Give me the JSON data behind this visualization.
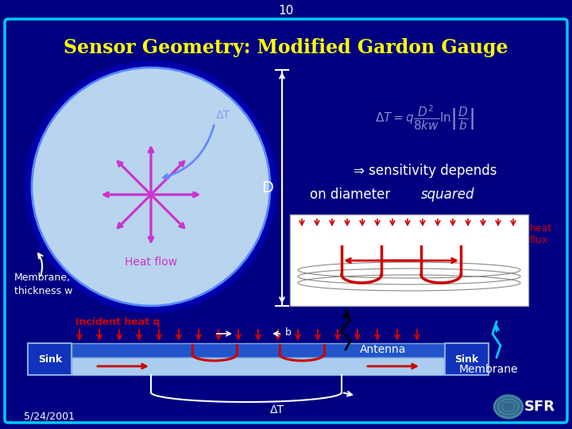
{
  "slide_number": "10",
  "title": "Sensor Geometry: Modified Gardon Gauge",
  "background_color": "#000080",
  "border_color": "#00ccff",
  "title_color": "#ffff00",
  "slide_num_color": "#ffffff",
  "date_text": "5/24/2001",
  "sensitivity_text_line1": "⇒ sensitivity depends",
  "sensitivity_text_line2": "on diameter ",
  "sensitivity_italic": "squared",
  "membrane_label": "Membrane,",
  "thickness_label": "thickness w",
  "incident_heat_label": "Incident heat q",
  "heat_flow_label": "Heat flow",
  "b_label": "b",
  "antenna_label": "Antenna",
  "membrane_bottom_label": "Membrane",
  "sink_label": "Sink",
  "delta_t_label": "ΔT",
  "delta_t_top_label": "ΔT",
  "D_label": "D",
  "heat_flux_label": "heat\nflux",
  "arrow_color": "#cc33cc",
  "red_color": "#cc0000",
  "white_color": "#ffffff",
  "light_blue_circle": "#b8d4ee",
  "cyan_color": "#00ccff",
  "formula_color": "#8888cc",
  "dark_blue_ring": "#0000aa",
  "sink_blue": "#1133bb",
  "plate_blue": "#2255cc",
  "plate_light": "#aaccee"
}
